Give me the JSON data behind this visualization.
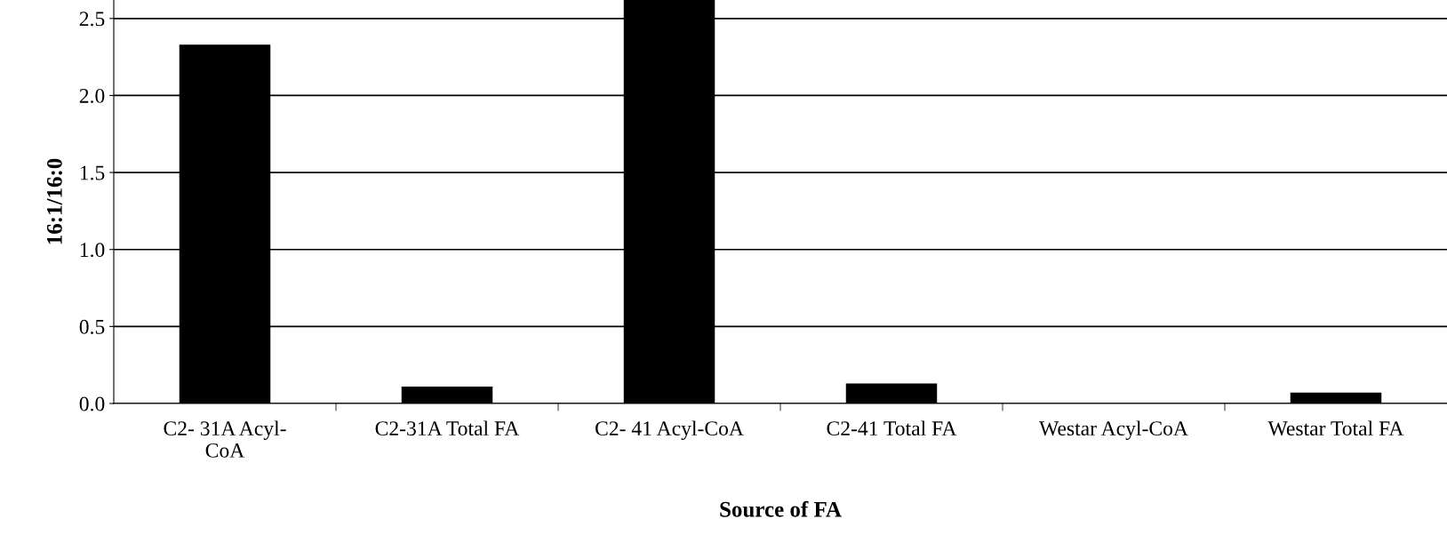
{
  "chart_data": {
    "type": "bar",
    "categories": [
      "C2- 31A Acyl-\nCoA",
      "C2-31A Total FA",
      "C2- 41 Acyl-CoA",
      "C2-41 Total FA",
      "Westar Acyl-CoA",
      "Westar Total FA"
    ],
    "values": [
      2.33,
      0.11,
      2.62,
      0.13,
      0,
      0.07
    ],
    "color": "#000000",
    "xlabel": "Source of FA",
    "ylabel": "16:1/16:0",
    "ylim": [
      0,
      2.62
    ],
    "yticks": [
      {
        "value": 0,
        "label": "0.0"
      },
      {
        "value": 0.5,
        "label": "0.5"
      },
      {
        "value": 1.0,
        "label": "1.0"
      },
      {
        "value": 1.5,
        "label": "1.5"
      },
      {
        "value": 2.0,
        "label": "2.0"
      },
      {
        "value": 2.5,
        "label": "2.5"
      }
    ],
    "grid": "y",
    "legend": false
  }
}
